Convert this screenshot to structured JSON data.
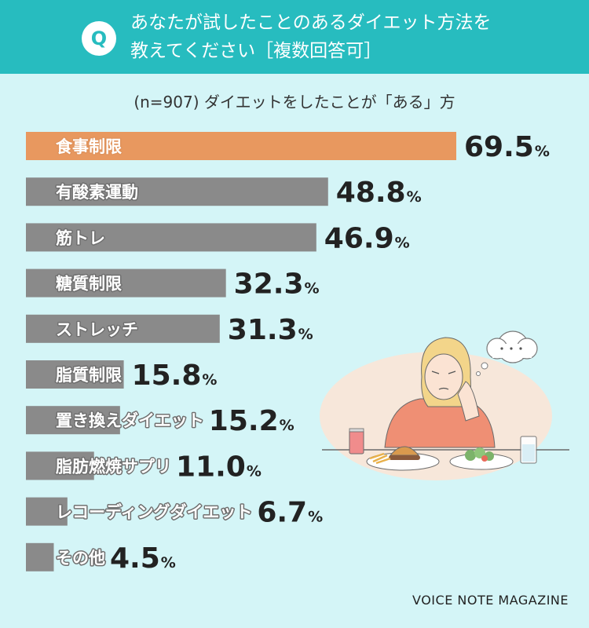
{
  "header": {
    "q_icon": "Q",
    "question_line1": "あなたが試したことのあるダイエット方法を",
    "question_line2": "教えてください［複数回答可］"
  },
  "subtitle": "(n=907) ダイエットをしたことが「ある」方",
  "brand": "VOICE NOTE MAGAZINE",
  "colors": {
    "header": "#27bcbf",
    "background": "#d4f5f7",
    "highlight_bar": "#e8985f",
    "bar": "#8a8a8a"
  },
  "chart_data": {
    "type": "bar",
    "orientation": "horizontal",
    "unit": "%",
    "categories": [
      "食事制限",
      "有酸素運動",
      "筋トレ",
      "糖質制限",
      "ストレッチ",
      "脂質制限",
      "置き換えダイエット",
      "脂肪燃焼サプリ",
      "レコーディングダイエット",
      "その他"
    ],
    "values": [
      69.5,
      48.8,
      46.9,
      32.3,
      31.3,
      15.8,
      15.2,
      11.0,
      6.7,
      4.5
    ],
    "value_labels": [
      "69.5",
      "48.8",
      "46.9",
      "32.3",
      "31.3",
      "15.8",
      "15.2",
      "11.0",
      "6.7",
      "4.5"
    ],
    "highlight_index": 0
  }
}
